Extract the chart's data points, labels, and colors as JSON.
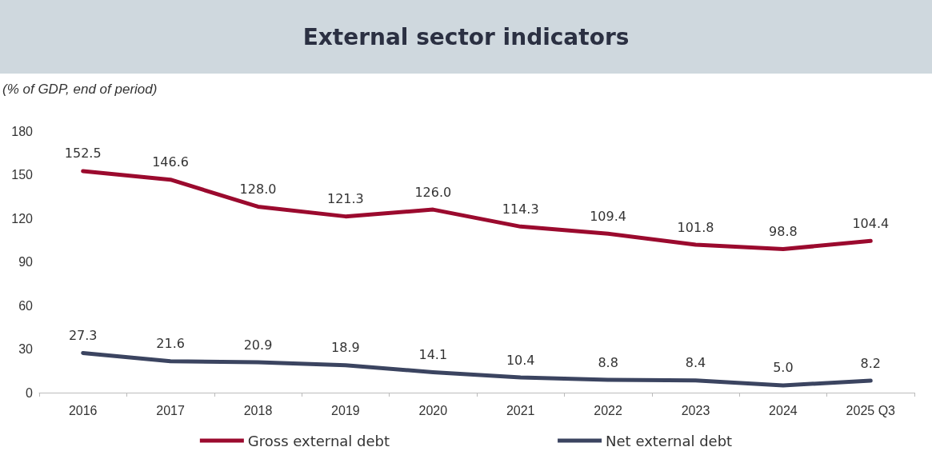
{
  "chart_data": {
    "type": "line",
    "title": "External sector indicators",
    "ylabel": "(% of GDP, end of period)",
    "categories": [
      "2016",
      "2017",
      "2018",
      "2019",
      "2020",
      "2021",
      "2022",
      "2023",
      "2024",
      "2025 Q3"
    ],
    "series": [
      {
        "name": "Gross external debt",
        "color": "#9b0a2e",
        "values": [
          152.5,
          146.6,
          128.0,
          121.3,
          126.0,
          114.3,
          109.4,
          101.8,
          98.8,
          104.4
        ],
        "value_labels": [
          "152.5",
          "146.6",
          "128.0",
          "121.3",
          "126.0",
          "114.3",
          "109.4",
          "101.8",
          "98.8",
          "104.4"
        ]
      },
      {
        "name": "Net external debt",
        "color": "#3b4460",
        "values": [
          27.3,
          21.6,
          20.9,
          18.9,
          14.1,
          10.4,
          8.8,
          8.4,
          5.0,
          8.2
        ],
        "value_labels": [
          "27.3",
          "21.6",
          "20.9",
          "18.9",
          "14.1",
          "10.4",
          "8.8",
          "8.4",
          "5.0",
          "8.2"
        ]
      }
    ],
    "ylim": [
      0,
      180
    ],
    "yticks": [
      0,
      30,
      60,
      90,
      120,
      150,
      180
    ],
    "grid": false,
    "legend": "bottom",
    "marker": "none",
    "line_style": "solid"
  }
}
